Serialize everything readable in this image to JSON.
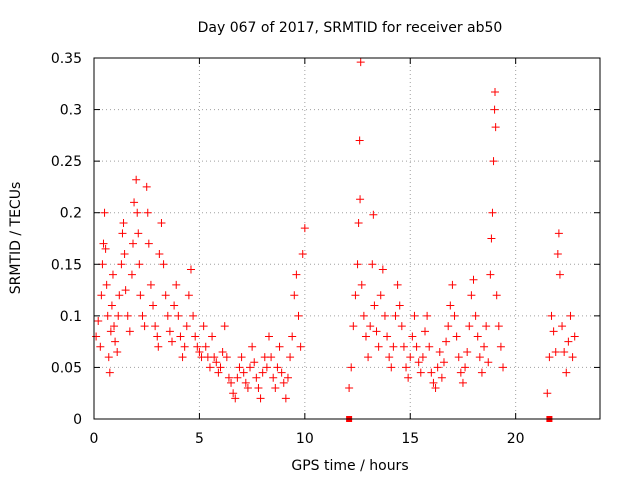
{
  "chart_data": {
    "type": "scatter",
    "title": "Day 067 of 2017, SRMTID for receiver ab50",
    "xlabel": "GPS time / hours",
    "ylabel": "SRMTID / TECUs",
    "xlim": [
      0,
      24
    ],
    "ylim": [
      0,
      0.35
    ],
    "x_ticks": [
      0,
      5,
      10,
      15,
      20
    ],
    "x_tick_labels": [
      "0",
      "5",
      "10",
      "15",
      "20"
    ],
    "y_ticks": [
      0,
      0.05,
      0.1,
      0.15,
      0.2,
      0.25,
      0.3,
      0.35
    ],
    "y_tick_labels": [
      "0",
      "0.05",
      "0.1",
      "0.15",
      "0.2",
      "0.25",
      "0.3",
      "0.35"
    ],
    "grid": true,
    "marker_color": "#ff0000",
    "series": [
      {
        "name": "SRMTID",
        "marker": "plus",
        "points": [
          [
            0.1,
            0.08
          ],
          [
            0.2,
            0.095
          ],
          [
            0.3,
            0.07
          ],
          [
            0.35,
            0.12
          ],
          [
            0.4,
            0.15
          ],
          [
            0.45,
            0.17
          ],
          [
            0.5,
            0.2
          ],
          [
            0.55,
            0.165
          ],
          [
            0.6,
            0.13
          ],
          [
            0.65,
            0.1
          ],
          [
            0.7,
            0.06
          ],
          [
            0.75,
            0.045
          ],
          [
            0.8,
            0.085
          ],
          [
            0.85,
            0.11
          ],
          [
            0.9,
            0.14
          ],
          [
            0.95,
            0.09
          ],
          [
            1.0,
            0.075
          ],
          [
            1.1,
            0.065
          ],
          [
            1.15,
            0.1
          ],
          [
            1.2,
            0.12
          ],
          [
            1.3,
            0.15
          ],
          [
            1.35,
            0.18
          ],
          [
            1.4,
            0.19
          ],
          [
            1.45,
            0.16
          ],
          [
            1.5,
            0.125
          ],
          [
            1.6,
            0.1
          ],
          [
            1.7,
            0.085
          ],
          [
            1.8,
            0.14
          ],
          [
            1.85,
            0.17
          ],
          [
            1.9,
            0.21
          ],
          [
            2.0,
            0.232
          ],
          [
            2.05,
            0.2
          ],
          [
            2.1,
            0.18
          ],
          [
            2.15,
            0.15
          ],
          [
            2.2,
            0.12
          ],
          [
            2.3,
            0.1
          ],
          [
            2.4,
            0.09
          ],
          [
            2.5,
            0.225
          ],
          [
            2.55,
            0.2
          ],
          [
            2.6,
            0.17
          ],
          [
            2.7,
            0.13
          ],
          [
            2.8,
            0.11
          ],
          [
            2.9,
            0.09
          ],
          [
            3.0,
            0.08
          ],
          [
            3.05,
            0.07
          ],
          [
            3.1,
            0.16
          ],
          [
            3.2,
            0.19
          ],
          [
            3.3,
            0.15
          ],
          [
            3.4,
            0.12
          ],
          [
            3.5,
            0.1
          ],
          [
            3.6,
            0.085
          ],
          [
            3.7,
            0.075
          ],
          [
            3.8,
            0.11
          ],
          [
            3.9,
            0.13
          ],
          [
            4.0,
            0.1
          ],
          [
            4.1,
            0.08
          ],
          [
            4.2,
            0.06
          ],
          [
            4.3,
            0.07
          ],
          [
            4.4,
            0.09
          ],
          [
            4.5,
            0.12
          ],
          [
            4.6,
            0.145
          ],
          [
            4.7,
            0.1
          ],
          [
            4.8,
            0.08
          ],
          [
            4.9,
            0.07
          ],
          [
            5.0,
            0.065
          ],
          [
            5.1,
            0.06
          ],
          [
            5.2,
            0.09
          ],
          [
            5.3,
            0.07
          ],
          [
            5.4,
            0.06
          ],
          [
            5.5,
            0.05
          ],
          [
            5.6,
            0.08
          ],
          [
            5.7,
            0.06
          ],
          [
            5.8,
            0.055
          ],
          [
            5.9,
            0.045
          ],
          [
            6.0,
            0.05
          ],
          [
            6.1,
            0.065
          ],
          [
            6.2,
            0.09
          ],
          [
            6.3,
            0.06
          ],
          [
            6.4,
            0.04
          ],
          [
            6.5,
            0.035
          ],
          [
            6.6,
            0.025
          ],
          [
            6.7,
            0.02
          ],
          [
            6.8,
            0.04
          ],
          [
            6.9,
            0.05
          ],
          [
            7.0,
            0.06
          ],
          [
            7.1,
            0.045
          ],
          [
            7.2,
            0.035
          ],
          [
            7.3,
            0.03
          ],
          [
            7.4,
            0.05
          ],
          [
            7.5,
            0.07
          ],
          [
            7.6,
            0.055
          ],
          [
            7.7,
            0.04
          ],
          [
            7.8,
            0.03
          ],
          [
            7.9,
            0.02
          ],
          [
            8.0,
            0.045
          ],
          [
            8.1,
            0.06
          ],
          [
            8.2,
            0.05
          ],
          [
            8.3,
            0.08
          ],
          [
            8.4,
            0.06
          ],
          [
            8.5,
            0.04
          ],
          [
            8.6,
            0.03
          ],
          [
            8.7,
            0.05
          ],
          [
            8.8,
            0.07
          ],
          [
            8.9,
            0.045
          ],
          [
            9.0,
            0.035
          ],
          [
            9.1,
            0.02
          ],
          [
            9.2,
            0.04
          ],
          [
            9.3,
            0.06
          ],
          [
            9.4,
            0.08
          ],
          [
            9.5,
            0.12
          ],
          [
            9.6,
            0.14
          ],
          [
            9.7,
            0.1
          ],
          [
            9.8,
            0.07
          ],
          [
            9.9,
            0.16
          ],
          [
            10.0,
            0.185
          ],
          [
            12.1,
            0.03
          ],
          [
            12.2,
            0.05
          ],
          [
            12.3,
            0.09
          ],
          [
            12.4,
            0.12
          ],
          [
            12.5,
            0.15
          ],
          [
            12.55,
            0.19
          ],
          [
            12.6,
            0.27
          ],
          [
            12.62,
            0.213
          ],
          [
            12.65,
            0.346
          ],
          [
            12.7,
            0.13
          ],
          [
            12.8,
            0.1
          ],
          [
            12.9,
            0.08
          ],
          [
            13.0,
            0.06
          ],
          [
            13.1,
            0.09
          ],
          [
            13.2,
            0.15
          ],
          [
            13.25,
            0.198
          ],
          [
            13.3,
            0.11
          ],
          [
            13.4,
            0.085
          ],
          [
            13.5,
            0.07
          ],
          [
            13.6,
            0.12
          ],
          [
            13.7,
            0.145
          ],
          [
            13.8,
            0.1
          ],
          [
            13.9,
            0.08
          ],
          [
            14.0,
            0.06
          ],
          [
            14.1,
            0.05
          ],
          [
            14.2,
            0.07
          ],
          [
            14.3,
            0.1
          ],
          [
            14.4,
            0.13
          ],
          [
            14.5,
            0.11
          ],
          [
            14.6,
            0.09
          ],
          [
            14.7,
            0.07
          ],
          [
            14.8,
            0.05
          ],
          [
            14.9,
            0.04
          ],
          [
            15.0,
            0.06
          ],
          [
            15.1,
            0.08
          ],
          [
            15.2,
            0.1
          ],
          [
            15.3,
            0.07
          ],
          [
            15.4,
            0.055
          ],
          [
            15.5,
            0.045
          ],
          [
            15.6,
            0.06
          ],
          [
            15.7,
            0.085
          ],
          [
            15.8,
            0.1
          ],
          [
            15.9,
            0.07
          ],
          [
            16.0,
            0.045
          ],
          [
            16.1,
            0.035
          ],
          [
            16.2,
            0.03
          ],
          [
            16.3,
            0.05
          ],
          [
            16.4,
            0.065
          ],
          [
            16.5,
            0.04
          ],
          [
            16.6,
            0.055
          ],
          [
            16.7,
            0.075
          ],
          [
            16.8,
            0.09
          ],
          [
            16.9,
            0.11
          ],
          [
            17.0,
            0.13
          ],
          [
            17.1,
            0.1
          ],
          [
            17.2,
            0.08
          ],
          [
            17.3,
            0.06
          ],
          [
            17.4,
            0.045
          ],
          [
            17.5,
            0.035
          ],
          [
            17.6,
            0.05
          ],
          [
            17.7,
            0.065
          ],
          [
            17.8,
            0.09
          ],
          [
            17.9,
            0.12
          ],
          [
            18.0,
            0.135
          ],
          [
            18.1,
            0.1
          ],
          [
            18.2,
            0.08
          ],
          [
            18.3,
            0.06
          ],
          [
            18.4,
            0.045
          ],
          [
            18.5,
            0.07
          ],
          [
            18.6,
            0.09
          ],
          [
            18.7,
            0.055
          ],
          [
            18.8,
            0.14
          ],
          [
            18.85,
            0.175
          ],
          [
            18.9,
            0.2
          ],
          [
            18.95,
            0.25
          ],
          [
            19.0,
            0.3
          ],
          [
            19.02,
            0.317
          ],
          [
            19.05,
            0.283
          ],
          [
            19.1,
            0.12
          ],
          [
            19.2,
            0.09
          ],
          [
            19.3,
            0.07
          ],
          [
            19.4,
            0.05
          ],
          [
            21.5,
            0.025
          ],
          [
            21.6,
            0.06
          ],
          [
            21.7,
            0.1
          ],
          [
            21.8,
            0.085
          ],
          [
            21.9,
            0.065
          ],
          [
            22.0,
            0.16
          ],
          [
            22.05,
            0.18
          ],
          [
            22.1,
            0.14
          ],
          [
            22.2,
            0.09
          ],
          [
            22.3,
            0.065
          ],
          [
            22.4,
            0.045
          ],
          [
            22.5,
            0.075
          ],
          [
            22.6,
            0.1
          ],
          [
            22.7,
            0.06
          ],
          [
            22.8,
            0.08
          ]
        ]
      },
      {
        "name": "gaps",
        "marker": "square",
        "points": [
          [
            12.1,
            0.0
          ],
          [
            21.6,
            0.0
          ]
        ]
      }
    ]
  }
}
